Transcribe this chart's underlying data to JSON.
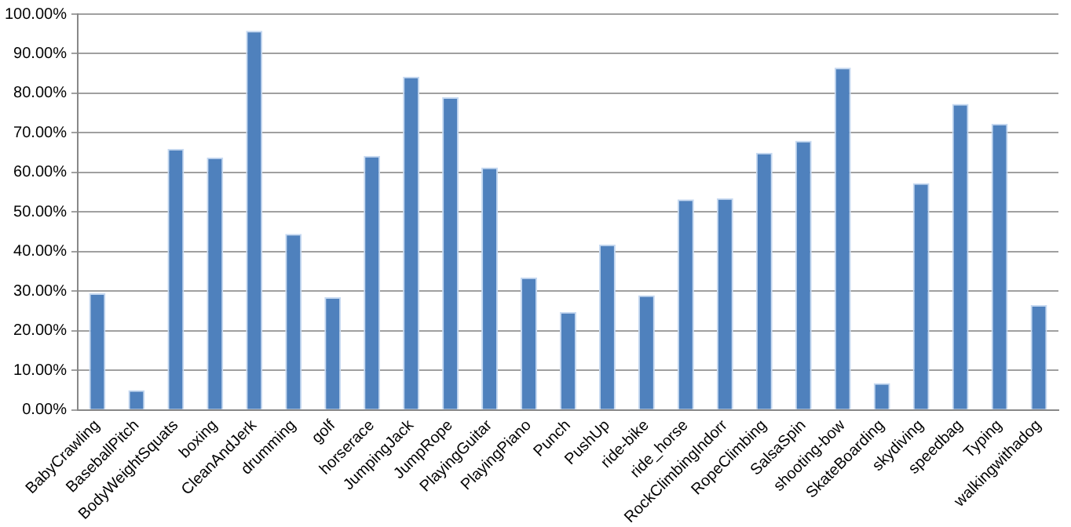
{
  "chart_data": {
    "type": "bar",
    "categories": [
      "BabyCrawling",
      "BaseballPitch",
      "BodyWeightSquats",
      "boxing",
      "CleanAndJerk",
      "drumming",
      "golf",
      "horserace",
      "JumpingJack",
      "JumpRope",
      "PlayingGuitar",
      "PlayingPiano",
      "Punch",
      "PushUp",
      "ride-bike",
      "ride_horse",
      "RockClimbingIndorr",
      "RopeClimbing",
      "SalsaSpin",
      "shooting-bow",
      "SkateBoarding",
      "skydiving",
      "speedbag",
      "Typing",
      "walkingwithadog"
    ],
    "values": [
      29.5,
      5,
      66,
      63.8,
      95.8,
      44.5,
      28.5,
      64.2,
      84.2,
      79,
      61.3,
      33.5,
      24.8,
      41.8,
      29,
      53.2,
      53.5,
      65,
      68,
      86.5,
      6.8,
      57.3,
      77.3,
      72.3,
      26.5
    ],
    "color": "#4f81bd",
    "ylim": [
      0,
      100
    ],
    "yticks": [
      {
        "value": 0,
        "label": "0.00%"
      },
      {
        "value": 10,
        "label": "10.00%"
      },
      {
        "value": 20,
        "label": "20.00%"
      },
      {
        "value": 30,
        "label": "30.00%"
      },
      {
        "value": 40,
        "label": "40.00%"
      },
      {
        "value": 50,
        "label": "50.00%"
      },
      {
        "value": 60,
        "label": "60.00%"
      },
      {
        "value": 70,
        "label": "70.00%"
      },
      {
        "value": 80,
        "label": "80.00%"
      },
      {
        "value": 90,
        "label": "90.00%"
      },
      {
        "value": 100,
        "label": "100.00%"
      }
    ],
    "grid": "y",
    "legend": false
  }
}
